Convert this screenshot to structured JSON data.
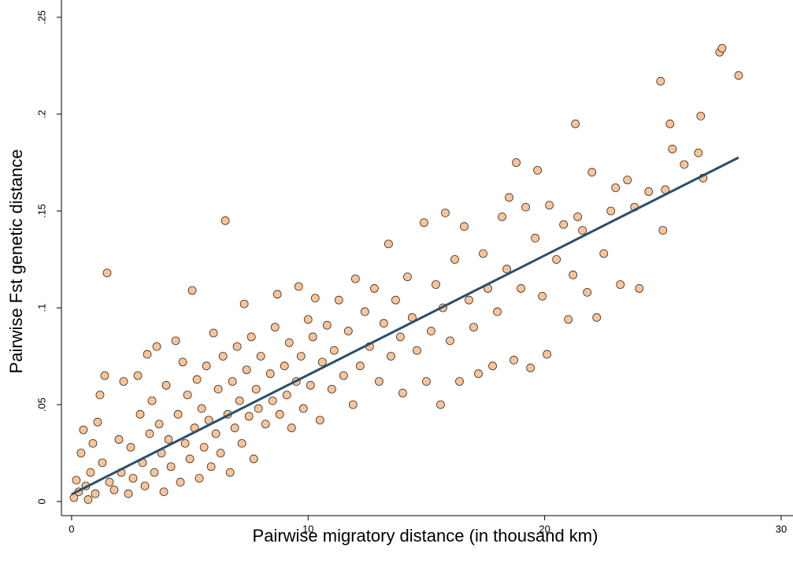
{
  "chart_data": {
    "type": "scatter",
    "xlabel": "Pairwise migratory distance (in thousand km)",
    "ylabel": "Pairwise Fst genetic distance",
    "xlim": [
      -0.43,
      30.5
    ],
    "ylim": [
      -0.0073,
      0.255
    ],
    "xticks": [
      0,
      10,
      20,
      30
    ],
    "yticks": [
      0,
      {
        "value": 0.05,
        "label": ".05"
      },
      {
        "value": 0.1,
        "label": ".1"
      },
      {
        "value": 0.15,
        "label": ".15"
      },
      {
        "value": 0.2,
        "label": ".2"
      },
      {
        "value": 0.25,
        "label": ".25"
      }
    ],
    "grid": false,
    "series": [
      {
        "color": "#f9c49a",
        "x": [
          0.1,
          0.2,
          0.3,
          0.4,
          0.5,
          0.6,
          0.7,
          0.8,
          0.9,
          1.0,
          1.1,
          1.2,
          1.3,
          1.4,
          1.5,
          1.6,
          1.8,
          2.0,
          2.1,
          2.2,
          2.4,
          2.5,
          2.6,
          2.8,
          2.9,
          3.0,
          3.1,
          3.2,
          3.3,
          3.4,
          3.5,
          3.6,
          3.7,
          3.8,
          3.9,
          4.0,
          4.1,
          4.2,
          4.4,
          4.5,
          4.6,
          4.7,
          4.8,
          4.9,
          5.0,
          5.1,
          5.2,
          5.3,
          5.4,
          5.5,
          5.6,
          5.7,
          5.8,
          5.9,
          6.0,
          6.1,
          6.2,
          6.3,
          6.4,
          6.5,
          6.6,
          6.7,
          6.8,
          6.9,
          7.0,
          7.1,
          7.2,
          7.3,
          7.4,
          7.5,
          7.6,
          7.7,
          7.8,
          7.9,
          8.0,
          8.2,
          8.4,
          8.5,
          8.6,
          8.7,
          8.8,
          9.0,
          9.1,
          9.2,
          9.3,
          9.5,
          9.6,
          9.7,
          9.8,
          10.0,
          10.1,
          10.2,
          10.3,
          10.5,
          10.6,
          10.8,
          11.0,
          11.1,
          11.3,
          11.5,
          11.7,
          11.9,
          12.0,
          12.2,
          12.4,
          12.6,
          12.8,
          13.0,
          13.2,
          13.4,
          13.5,
          13.7,
          13.9,
          14.0,
          14.2,
          14.4,
          14.6,
          14.9,
          15.0,
          15.2,
          15.4,
          15.6,
          15.7,
          15.8,
          16.0,
          16.2,
          16.4,
          16.6,
          16.8,
          17.0,
          17.2,
          17.4,
          17.6,
          17.8,
          18.0,
          18.2,
          18.4,
          18.5,
          18.7,
          18.8,
          19.0,
          19.2,
          19.4,
          19.6,
          19.7,
          19.9,
          20.1,
          20.2,
          20.5,
          20.8,
          21.0,
          21.2,
          21.3,
          21.4,
          21.6,
          21.8,
          22.0,
          22.2,
          22.5,
          22.8,
          23.0,
          23.2,
          23.5,
          23.8,
          24.0,
          24.4,
          24.9,
          25.0,
          25.1,
          25.3,
          25.4,
          25.9,
          26.5,
          26.6,
          26.7,
          27.4,
          27.5,
          28.2
        ],
        "y": [
          0.002,
          0.011,
          0.005,
          0.025,
          0.037,
          0.008,
          0.001,
          0.015,
          0.03,
          0.004,
          0.041,
          0.055,
          0.02,
          0.065,
          0.118,
          0.01,
          0.006,
          0.032,
          0.015,
          0.062,
          0.004,
          0.028,
          0.012,
          0.065,
          0.045,
          0.02,
          0.008,
          0.076,
          0.035,
          0.052,
          0.015,
          0.08,
          0.04,
          0.025,
          0.005,
          0.06,
          0.032,
          0.018,
          0.083,
          0.045,
          0.01,
          0.072,
          0.03,
          0.055,
          0.022,
          0.109,
          0.038,
          0.063,
          0.012,
          0.048,
          0.028,
          0.07,
          0.042,
          0.018,
          0.087,
          0.035,
          0.058,
          0.025,
          0.075,
          0.145,
          0.045,
          0.015,
          0.062,
          0.038,
          0.08,
          0.052,
          0.03,
          0.102,
          0.068,
          0.044,
          0.085,
          0.022,
          0.058,
          0.048,
          0.075,
          0.04,
          0.066,
          0.052,
          0.09,
          0.107,
          0.045,
          0.07,
          0.055,
          0.082,
          0.038,
          0.062,
          0.111,
          0.075,
          0.048,
          0.094,
          0.06,
          0.085,
          0.105,
          0.042,
          0.072,
          0.091,
          0.058,
          0.078,
          0.104,
          0.065,
          0.088,
          0.05,
          0.115,
          0.07,
          0.098,
          0.08,
          0.11,
          0.062,
          0.092,
          0.133,
          0.075,
          0.104,
          0.085,
          0.056,
          0.116,
          0.095,
          0.078,
          0.144,
          0.062,
          0.088,
          0.112,
          0.05,
          0.1,
          0.149,
          0.083,
          0.125,
          0.062,
          0.142,
          0.104,
          0.09,
          0.066,
          0.128,
          0.11,
          0.07,
          0.098,
          0.147,
          0.12,
          0.157,
          0.073,
          0.175,
          0.11,
          0.152,
          0.069,
          0.136,
          0.171,
          0.106,
          0.076,
          0.153,
          0.125,
          0.143,
          0.094,
          0.117,
          0.195,
          0.147,
          0.14,
          0.108,
          0.17,
          0.095,
          0.128,
          0.15,
          0.162,
          0.112,
          0.166,
          0.152,
          0.11,
          0.16,
          0.217,
          0.14,
          0.161,
          0.195,
          0.182,
          0.174,
          0.18,
          0.199,
          0.167,
          0.232,
          0.234,
          0.22
        ]
      }
    ],
    "fit": {
      "color": "#2a4f6e",
      "x": [
        0,
        28.2
      ],
      "y": [
        0.0037,
        0.1776
      ]
    }
  }
}
